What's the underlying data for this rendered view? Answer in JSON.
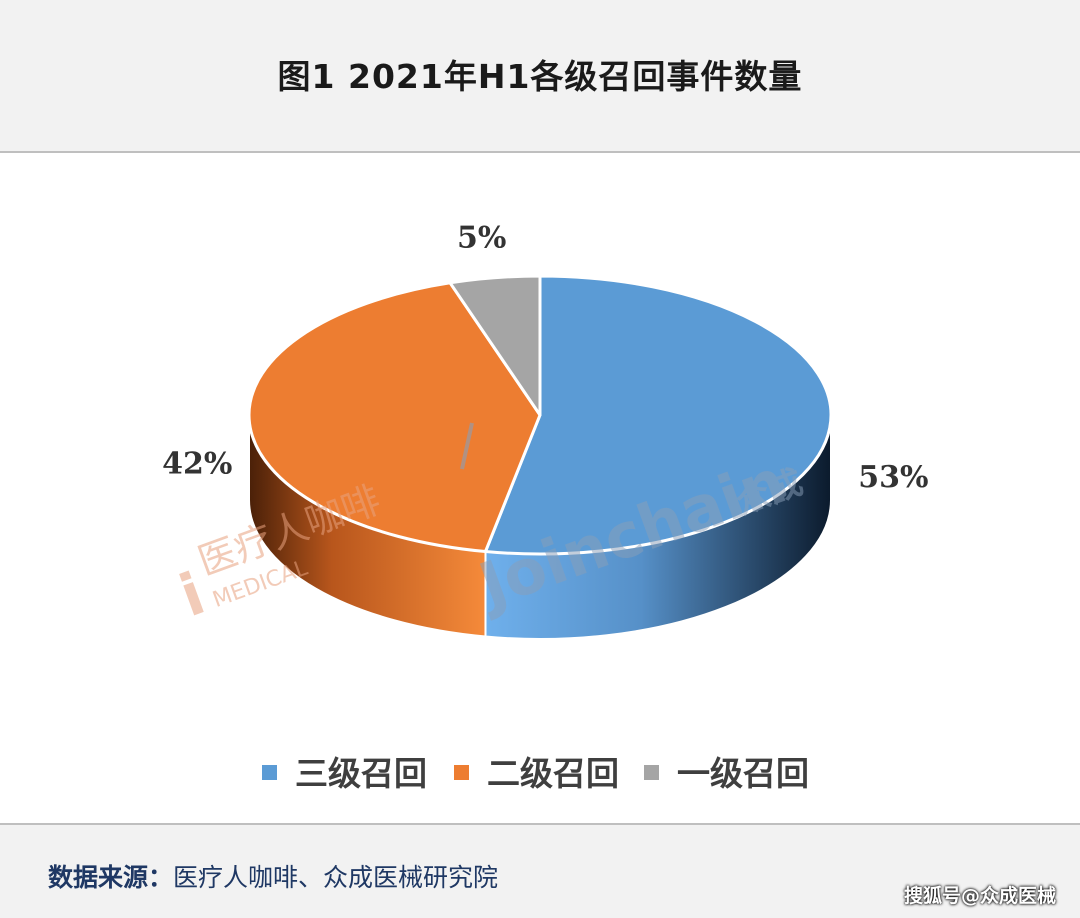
{
  "header": {
    "title": "图1  2021年H1各级召回事件数量"
  },
  "chart_data": {
    "type": "pie",
    "title": "图1  2021年H1各级召回事件数量",
    "categories": [
      "三级召回",
      "二级召回",
      "一级召回"
    ],
    "values": [
      53,
      42,
      5
    ],
    "labels": [
      "53%",
      "42%",
      "5%"
    ],
    "colors": [
      "#5b9bd5",
      "#ed7d31",
      "#a5a5a5"
    ],
    "legend_position": "bottom"
  },
  "watermarks": {
    "brand": "Joinchain",
    "brand_cn": "众成",
    "medical": "医疗人咖啡",
    "medical_en": "MEDICAL"
  },
  "footer": {
    "source_label": "数据来源：",
    "source_value": "医疗人咖啡、众成医械研究院",
    "credit": "搜狐号@众成医械"
  }
}
